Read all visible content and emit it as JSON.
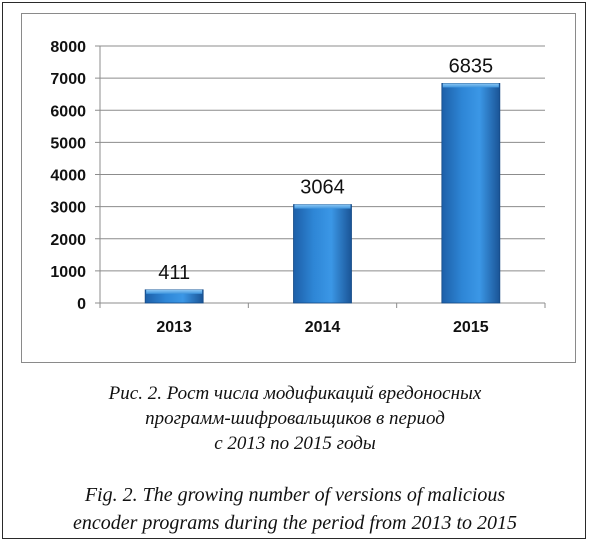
{
  "chart_data": {
    "type": "bar",
    "categories": [
      "2013",
      "2014",
      "2015"
    ],
    "values": [
      411,
      3064,
      6835
    ],
    "data_labels": [
      "411",
      "3064",
      "6835"
    ],
    "ylim": [
      0,
      8000
    ],
    "yticks": [
      0,
      1000,
      2000,
      3000,
      4000,
      5000,
      6000,
      7000,
      8000
    ],
    "ytick_labels": [
      "0",
      "1000",
      "2000",
      "3000",
      "4000",
      "5000",
      "6000",
      "7000",
      "8000"
    ],
    "grid": true,
    "bar_color": "#2e86d6",
    "title": "",
    "xlabel": "",
    "ylabel": ""
  },
  "captions": {
    "ru": [
      "Рис. 2. Рост числа модификаций вредоносных",
      "программ-шифровальщиков в период",
      "с 2013 по 2015 годы"
    ],
    "en": [
      "Fig. 2. The growing number of versions of malicious",
      "encoder programs during the period from 2013 to 2015"
    ]
  }
}
